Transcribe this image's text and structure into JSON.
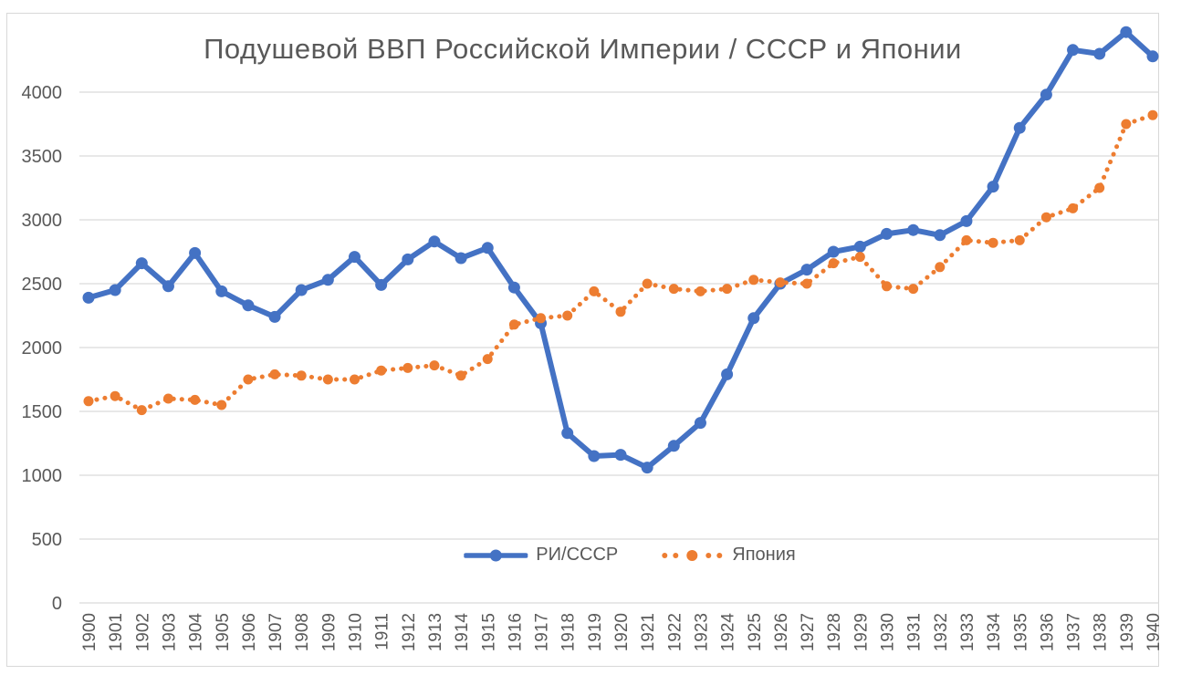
{
  "chart": {
    "title": "Подушевой ВВП Российской Империи / СССР и Японии",
    "background": "#ffffff",
    "frame_border_color": "#d8d8d8",
    "text_color": "#595959"
  },
  "chart_data": {
    "type": "line",
    "title": "Подушевой ВВП Российской Империи / СССР и Японии",
    "xlabel": "",
    "ylabel": "",
    "ylim": [
      0,
      4500
    ],
    "yticks": [
      0,
      500,
      1000,
      1500,
      2000,
      2500,
      3000,
      3500,
      4000
    ],
    "grid": "horizontal",
    "gridline_color": "#d9d9d9",
    "text_color": "#595959",
    "legend_position": "bottom-center-inside",
    "categories": [
      "1900",
      "1901",
      "1902",
      "1903",
      "1904",
      "1905",
      "1906",
      "1907",
      "1908",
      "1909",
      "1910",
      "1911",
      "1912",
      "1913",
      "1914",
      "1915",
      "1916",
      "1917",
      "1918",
      "1919",
      "1920",
      "1921",
      "1922",
      "1923",
      "1924",
      "1925",
      "1926",
      "1927",
      "1928",
      "1929",
      "1930",
      "1931",
      "1932",
      "1933",
      "1934",
      "1935",
      "1936",
      "1937",
      "1938",
      "1939",
      "1940"
    ],
    "series": [
      {
        "name": "РИ/СССР",
        "color": "#4472c4",
        "style": "solid",
        "marker": "circle",
        "line_width": 6,
        "marker_radius": 6.5,
        "values": [
          2390,
          2450,
          2660,
          2480,
          2740,
          2440,
          2330,
          2240,
          2450,
          2530,
          2710,
          2490,
          2690,
          2830,
          2700,
          2780,
          2470,
          2190,
          1330,
          1150,
          1160,
          1060,
          1230,
          1410,
          1790,
          2230,
          2500,
          2610,
          2750,
          2790,
          2890,
          2920,
          2880,
          2990,
          3260,
          3720,
          3980,
          4330,
          4300,
          4470,
          4280
        ]
      },
      {
        "name": "Япония",
        "color": "#ed7d31",
        "style": "dotted",
        "marker": "circle",
        "line_width": 5,
        "marker_radius": 5.5,
        "values": [
          1580,
          1620,
          1510,
          1600,
          1590,
          1550,
          1750,
          1790,
          1780,
          1750,
          1750,
          1820,
          1840,
          1860,
          1780,
          1910,
          2180,
          2230,
          2250,
          2440,
          2280,
          2500,
          2460,
          2440,
          2460,
          2530,
          2510,
          2500,
          2660,
          2710,
          2480,
          2460,
          2630,
          2840,
          2820,
          2840,
          3020,
          3090,
          3250,
          3750,
          3820
        ]
      }
    ]
  }
}
